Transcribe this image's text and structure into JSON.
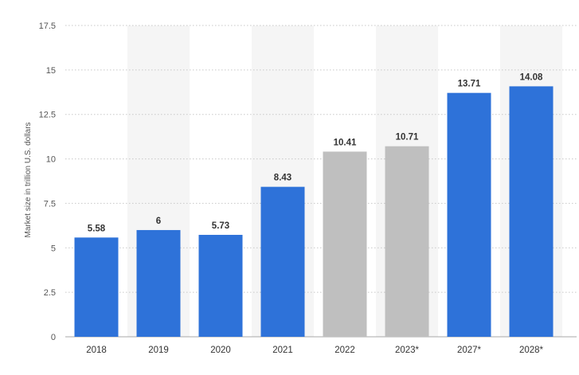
{
  "chart_data": {
    "type": "bar",
    "title": "",
    "xlabel": "",
    "ylabel": "Market size in trillion U.S. dollars",
    "ylim": [
      0,
      17.5
    ],
    "yticks": [
      "0",
      "2.5",
      "5",
      "7.5",
      "10",
      "12.5",
      "15",
      "17.5"
    ],
    "ytick_values": [
      0,
      2.5,
      5,
      7.5,
      10,
      12.5,
      15,
      17.5
    ],
    "categories": [
      "2018",
      "2019",
      "2020",
      "2021",
      "2022",
      "2023*",
      "2027*",
      "2028*"
    ],
    "values": [
      5.58,
      6,
      5.73,
      8.43,
      10.41,
      10.71,
      13.71,
      14.08
    ],
    "value_labels": [
      "5.58",
      "6",
      "5.73",
      "8.43",
      "10.41",
      "10.71",
      "13.71",
      "14.08"
    ],
    "bar_colors": [
      "#2e72d9",
      "#2e72d9",
      "#2e72d9",
      "#2e72d9",
      "#bfbfbf",
      "#bfbfbf",
      "#2e72d9",
      "#2e72d9"
    ],
    "grid": true,
    "legend": "none"
  }
}
